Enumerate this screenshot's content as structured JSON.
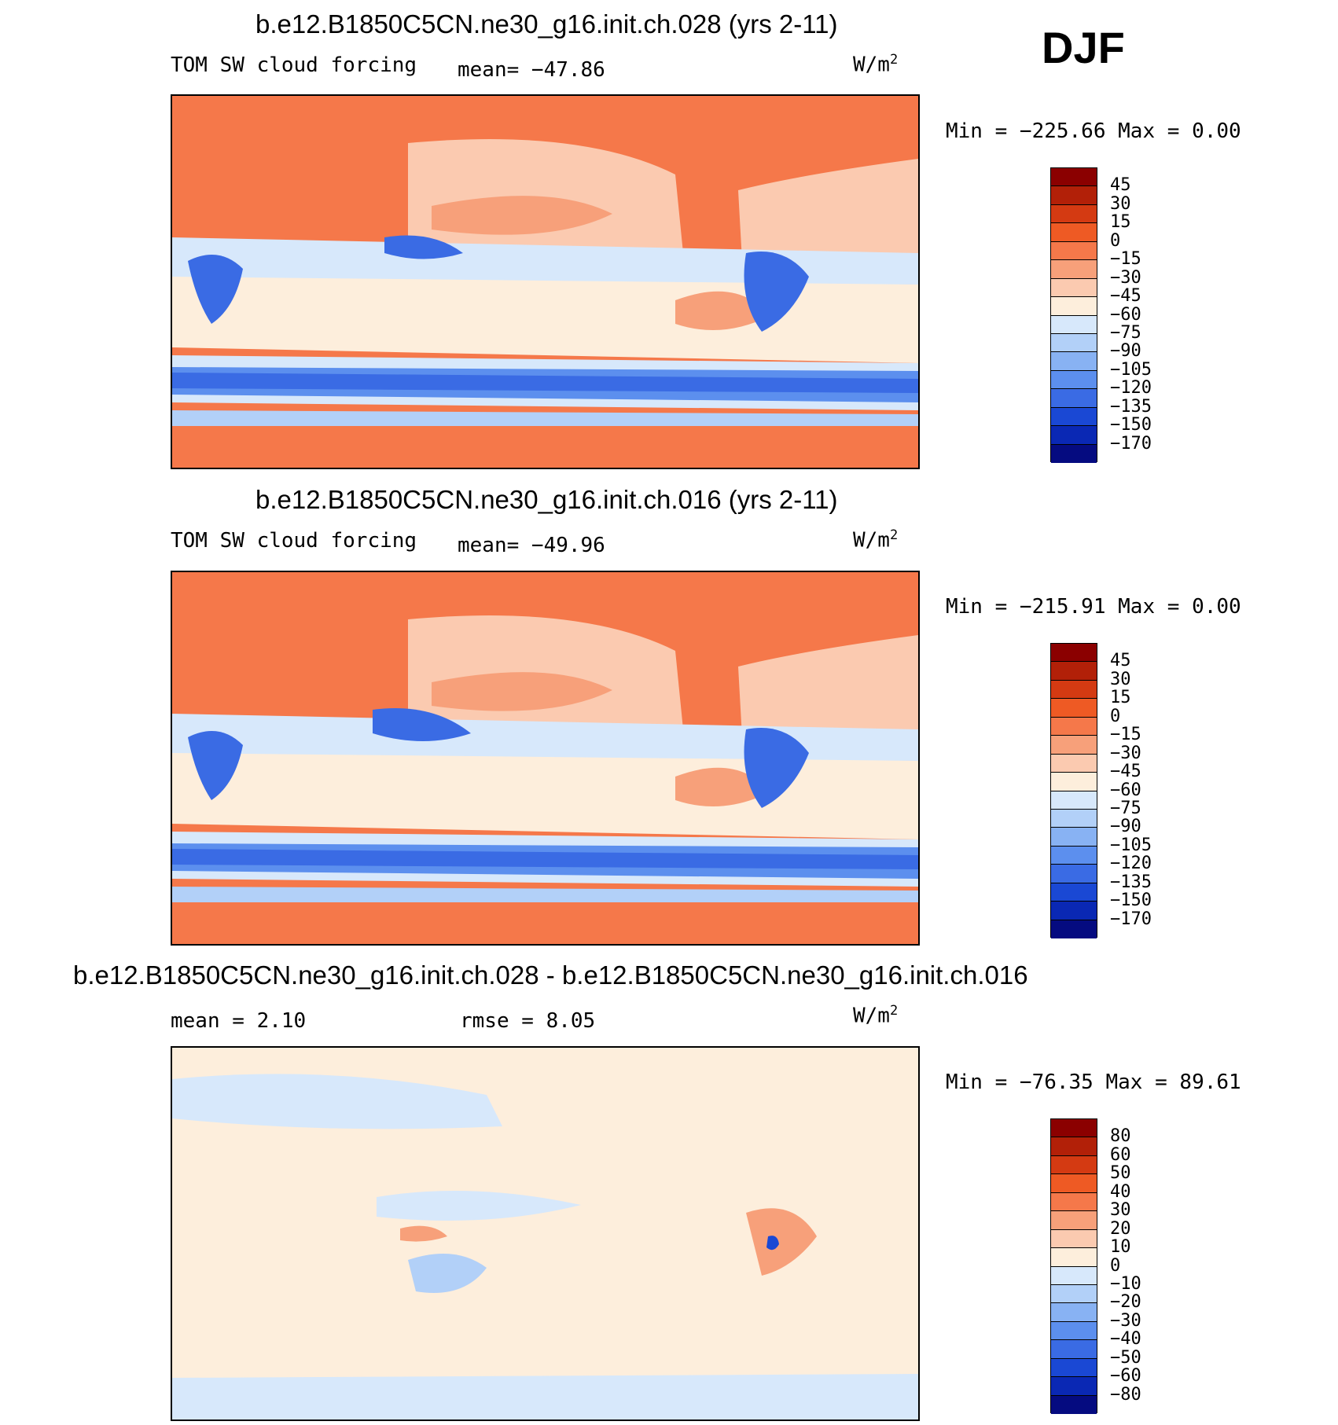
{
  "season": "DJF",
  "chart_data": [
    {
      "type": "heatmap",
      "title": "b.e12.B1850C5CN.ne30_g16.init.ch.028 (yrs 2-11)",
      "variable": "TOM SW cloud forcing",
      "units_base": "W/m",
      "units_exp": "2",
      "stat_text": "mean= −47.86",
      "minmax_text": "Min = −225.66 Max =    0.00",
      "mean": -47.86,
      "min": -225.66,
      "max": 0.0,
      "colorbar": {
        "labels": [
          "45",
          "30",
          "15",
          "0",
          "−15",
          "−30",
          "−45",
          "−60",
          "−75",
          "−90",
          "−105",
          "−120",
          "−135",
          "−150",
          "−170"
        ],
        "colors": [
          "#8b0000",
          "#b22008",
          "#d43a12",
          "#ee5a24",
          "#f5784a",
          "#f7a07a",
          "#fbcab0",
          "#fdeedc",
          "#d7e8fb",
          "#b2d0f8",
          "#88b2f3",
          "#5c8fee",
          "#3a6be4",
          "#1a48d4",
          "#0a28b4",
          "#050b80"
        ]
      }
    },
    {
      "type": "heatmap",
      "title": "b.e12.B1850C5CN.ne30_g16.init.ch.016 (yrs 2-11)",
      "variable": "TOM SW cloud forcing",
      "units_base": "W/m",
      "units_exp": "2",
      "stat_text": "mean= −49.96",
      "minmax_text": "Min = −215.91 Max =    0.00",
      "mean": -49.96,
      "min": -215.91,
      "max": 0.0,
      "colorbar": {
        "labels": [
          "45",
          "30",
          "15",
          "0",
          "−15",
          "−30",
          "−45",
          "−60",
          "−75",
          "−90",
          "−105",
          "−120",
          "−135",
          "−150",
          "−170"
        ],
        "colors": [
          "#8b0000",
          "#b22008",
          "#d43a12",
          "#ee5a24",
          "#f5784a",
          "#f7a07a",
          "#fbcab0",
          "#fdeedc",
          "#d7e8fb",
          "#b2d0f8",
          "#88b2f3",
          "#5c8fee",
          "#3a6be4",
          "#1a48d4",
          "#0a28b4",
          "#050b80"
        ]
      }
    },
    {
      "type": "heatmap",
      "title": "b.e12.B1850C5CN.ne30_g16.init.ch.028 - b.e12.B1850C5CN.ne30_g16.init.ch.016",
      "units_base": "W/m",
      "units_exp": "2",
      "mean_text": "mean =    2.10",
      "rmse_text": "rmse =    8.05",
      "minmax_text": "Min = −76.35 Max =  89.61",
      "mean": 2.1,
      "rmse": 8.05,
      "min": -76.35,
      "max": 89.61,
      "colorbar": {
        "labels": [
          "80",
          "60",
          "50",
          "40",
          "30",
          "20",
          "10",
          "0",
          "−10",
          "−20",
          "−30",
          "−40",
          "−50",
          "−60",
          "−80"
        ],
        "colors": [
          "#8b0000",
          "#b22008",
          "#d43a12",
          "#ee5a24",
          "#f5784a",
          "#f7a07a",
          "#fbcab0",
          "#fdeedc",
          "#d7e8fb",
          "#b2d0f8",
          "#88b2f3",
          "#5c8fee",
          "#3a6be4",
          "#1a48d4",
          "#0a28b4",
          "#050b80"
        ]
      }
    }
  ]
}
